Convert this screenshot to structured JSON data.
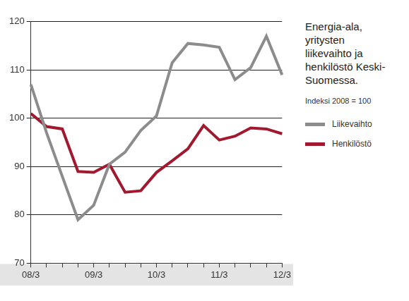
{
  "chart_data": {
    "type": "line",
    "title": "Energia-ala, yritysten liikevaihto ja henkilöstö Keski-Suomessa.",
    "subtitle": "Indeksi 2008 = 100",
    "categories": [
      "08/3",
      null,
      null,
      null,
      "09/3",
      null,
      null,
      null,
      "10/3",
      null,
      null,
      null,
      "11/3",
      null,
      null,
      null,
      "12/3"
    ],
    "series": [
      {
        "name": "Liikevaihto",
        "color": "#8c8c8c",
        "values": [
          107,
          97,
          88,
          79,
          82,
          90.5,
          93,
          97.5,
          100.5,
          111.5,
          115.5,
          115.2,
          114.7,
          108,
          110.5,
          117,
          109
        ]
      },
      {
        "name": "Henkilöstö",
        "color": "#a0192f",
        "values": [
          101,
          98.3,
          97.8,
          89,
          88.8,
          90.5,
          84.7,
          85,
          88.8,
          91.2,
          93.7,
          98.5,
          95.5,
          96.3,
          98,
          97.8,
          96.8
        ]
      }
    ],
    "ylim": [
      70,
      120
    ],
    "yticks": [
      70,
      80,
      90,
      100,
      110,
      120
    ],
    "grid": true,
    "legend": "right"
  }
}
